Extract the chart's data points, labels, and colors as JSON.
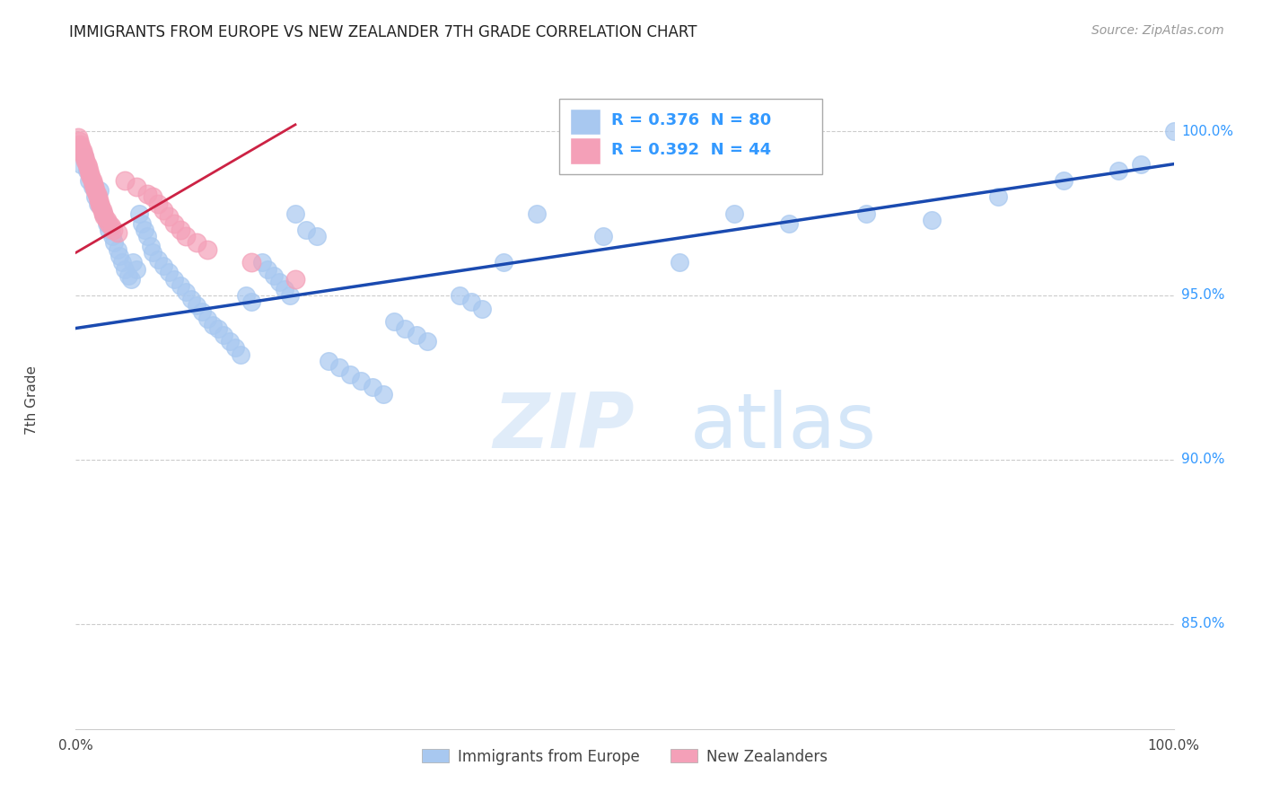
{
  "title": "IMMIGRANTS FROM EUROPE VS NEW ZEALANDER 7TH GRADE CORRELATION CHART",
  "source": "Source: ZipAtlas.com",
  "ylabel": "7th Grade",
  "ytick_labels": [
    "100.0%",
    "95.0%",
    "90.0%",
    "85.0%"
  ],
  "ytick_values": [
    1.0,
    0.95,
    0.9,
    0.85
  ],
  "xmin": 0.0,
  "xmax": 1.0,
  "ymin": 0.818,
  "ymax": 1.018,
  "legend_blue_R": "R = 0.376",
  "legend_blue_N": "N = 80",
  "legend_pink_R": "R = 0.392",
  "legend_pink_N": "N = 44",
  "legend_label_blue": "Immigrants from Europe",
  "legend_label_pink": "New Zealanders",
  "blue_color": "#a8c8f0",
  "pink_color": "#f4a0b8",
  "trendline_blue_color": "#1a4ab0",
  "trendline_pink_color": "#cc2244",
  "watermark_zip": "ZIP",
  "watermark_atlas": "atlas",
  "blue_trendline_x": [
    0.0,
    1.0
  ],
  "blue_trendline_y": [
    0.94,
    0.99
  ],
  "pink_trendline_x": [
    0.0,
    0.2
  ],
  "pink_trendline_y": [
    0.963,
    1.002
  ],
  "blue_scatter_x": [
    0.005,
    0.008,
    0.01,
    0.012,
    0.015,
    0.018,
    0.02,
    0.022,
    0.025,
    0.028,
    0.03,
    0.033,
    0.035,
    0.038,
    0.04,
    0.042,
    0.045,
    0.048,
    0.05,
    0.052,
    0.055,
    0.058,
    0.06,
    0.063,
    0.065,
    0.068,
    0.07,
    0.075,
    0.08,
    0.085,
    0.09,
    0.095,
    0.1,
    0.105,
    0.11,
    0.115,
    0.12,
    0.125,
    0.13,
    0.135,
    0.14,
    0.145,
    0.15,
    0.155,
    0.16,
    0.17,
    0.175,
    0.18,
    0.185,
    0.19,
    0.195,
    0.2,
    0.21,
    0.22,
    0.23,
    0.24,
    0.25,
    0.26,
    0.27,
    0.28,
    0.29,
    0.3,
    0.31,
    0.32,
    0.35,
    0.36,
    0.37,
    0.39,
    0.42,
    0.48,
    0.55,
    0.6,
    0.65,
    0.72,
    0.78,
    0.84,
    0.9,
    0.95,
    0.97,
    1.0
  ],
  "blue_scatter_y": [
    0.99,
    0.992,
    0.988,
    0.985,
    0.983,
    0.98,
    0.978,
    0.982,
    0.975,
    0.972,
    0.97,
    0.968,
    0.966,
    0.964,
    0.962,
    0.96,
    0.958,
    0.956,
    0.955,
    0.96,
    0.958,
    0.975,
    0.972,
    0.97,
    0.968,
    0.965,
    0.963,
    0.961,
    0.959,
    0.957,
    0.955,
    0.953,
    0.951,
    0.949,
    0.947,
    0.945,
    0.943,
    0.941,
    0.94,
    0.938,
    0.936,
    0.934,
    0.932,
    0.95,
    0.948,
    0.96,
    0.958,
    0.956,
    0.954,
    0.952,
    0.95,
    0.975,
    0.97,
    0.968,
    0.93,
    0.928,
    0.926,
    0.924,
    0.922,
    0.92,
    0.942,
    0.94,
    0.938,
    0.936,
    0.95,
    0.948,
    0.946,
    0.96,
    0.975,
    0.968,
    0.96,
    0.975,
    0.972,
    0.975,
    0.973,
    0.98,
    0.985,
    0.988,
    0.99,
    1.0
  ],
  "pink_scatter_x": [
    0.002,
    0.003,
    0.004,
    0.005,
    0.006,
    0.007,
    0.008,
    0.009,
    0.01,
    0.011,
    0.012,
    0.013,
    0.014,
    0.015,
    0.016,
    0.017,
    0.018,
    0.019,
    0.02,
    0.021,
    0.022,
    0.023,
    0.024,
    0.025,
    0.026,
    0.028,
    0.03,
    0.032,
    0.034,
    0.038,
    0.045,
    0.055,
    0.065,
    0.07,
    0.075,
    0.08,
    0.085,
    0.09,
    0.095,
    0.1,
    0.11,
    0.12,
    0.16,
    0.2
  ],
  "pink_scatter_y": [
    0.998,
    0.997,
    0.996,
    0.995,
    0.994,
    0.993,
    0.992,
    0.991,
    0.99,
    0.989,
    0.988,
    0.987,
    0.986,
    0.985,
    0.984,
    0.983,
    0.982,
    0.981,
    0.98,
    0.979,
    0.978,
    0.977,
    0.976,
    0.975,
    0.974,
    0.973,
    0.972,
    0.971,
    0.97,
    0.969,
    0.985,
    0.983,
    0.981,
    0.98,
    0.978,
    0.976,
    0.974,
    0.972,
    0.97,
    0.968,
    0.966,
    0.964,
    0.96,
    0.955
  ]
}
